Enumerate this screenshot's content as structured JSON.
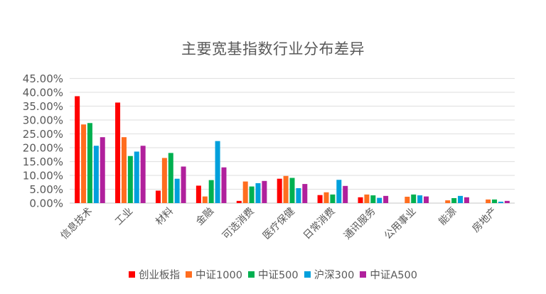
{
  "chart_data": {
    "type": "bar",
    "title": "主要宽基指数行业分布差异",
    "xlabel": "",
    "ylabel": "",
    "ylim": [
      0,
      45
    ],
    "yticks": [
      "0.00%",
      "5.00%",
      "10.00%",
      "15.00%",
      "20.00%",
      "25.00%",
      "30.00%",
      "35.00%",
      "40.00%",
      "45.00%"
    ],
    "grid": true,
    "legend_position": "bottom",
    "categories": [
      "信息技术",
      "工业",
      "材料",
      "金融",
      "可选消费",
      "医疗保健",
      "日常消费",
      "通讯服务",
      "公用事业",
      "能源",
      "房地产"
    ],
    "series": [
      {
        "name": "创业板指",
        "color": "#FF0000",
        "values": [
          38.6,
          36.3,
          4.5,
          6.3,
          0.8,
          8.8,
          2.9,
          2.1,
          0.0,
          0.0,
          0.0
        ]
      },
      {
        "name": "中证1000",
        "color": "#FF6D1F",
        "values": [
          28.4,
          23.8,
          16.3,
          2.4,
          7.8,
          9.8,
          3.9,
          3.1,
          2.3,
          1.0,
          1.3
        ]
      },
      {
        "name": "中证500",
        "color": "#00B050",
        "values": [
          28.9,
          17.0,
          18.1,
          8.3,
          6.0,
          9.1,
          3.1,
          2.8,
          3.1,
          1.8,
          1.3
        ]
      },
      {
        "name": "沪深300",
        "color": "#00A0DC",
        "values": [
          20.7,
          18.6,
          8.8,
          22.4,
          7.2,
          5.4,
          8.4,
          1.9,
          2.8,
          2.6,
          0.5
        ]
      },
      {
        "name": "中证A500",
        "color": "#B0209C",
        "values": [
          23.8,
          20.7,
          13.2,
          12.9,
          8.0,
          6.9,
          6.2,
          2.6,
          2.4,
          2.1,
          0.8
        ]
      }
    ]
  }
}
